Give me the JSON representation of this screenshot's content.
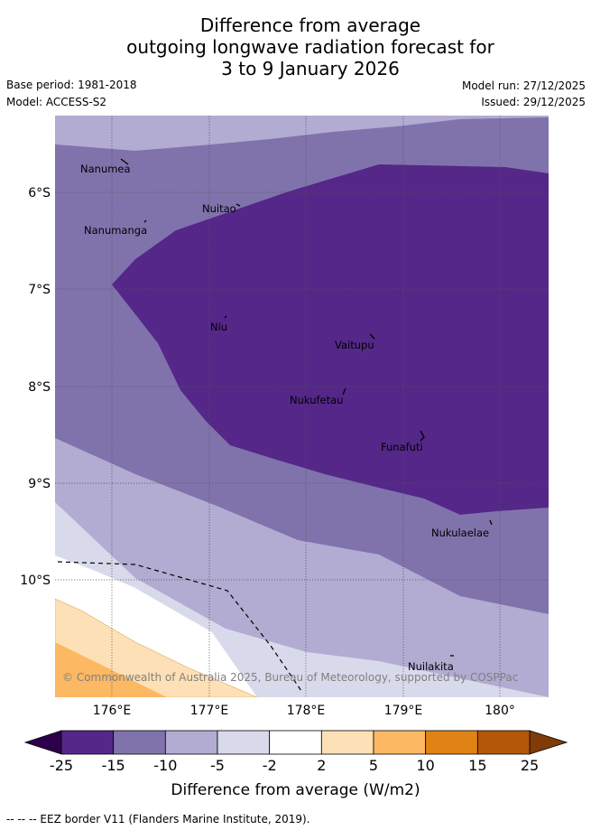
{
  "header": {
    "title_lines": [
      "Difference from average",
      "outgoing longwave radiation forecast for",
      "3 to 9 January 2026"
    ],
    "base_period": "Base period: 1981-2018",
    "model": "Model: ACCESS-S2",
    "model_run": "Model run: 27/12/2025",
    "issued": "Issued: 29/12/2025"
  },
  "map": {
    "lon_labels": [
      "176°E",
      "177°E",
      "178°E",
      "179°E",
      "180°"
    ],
    "lat_labels": [
      "6°S",
      "7°S",
      "8°S",
      "9°S",
      "10°S"
    ],
    "islands": [
      "Nanumea",
      "Nuitao",
      "Nanumanga",
      "Niu",
      "Vaitupu",
      "Nukufetau",
      "Funafuti",
      "Nukulaelae",
      "Nuilakita"
    ],
    "copyright": "© Commonwealth of Australia 2025, Bureau of Meteorology, supported by COSPPac",
    "colors": {
      "lt_-15": "#542788",
      "-15_-10": "#8073ac",
      "-10_-5": "#b2abd2",
      "-5_-2": "#d8daeb",
      "-2_2": "#ffffff",
      "2_5": "#fee0b6",
      "5_10": "#fdb863",
      "10_15": "#e08214",
      "15_25": "#b35806",
      "gt_25": "#7f3b08",
      "lt_-25": "#2d004b"
    }
  },
  "colorbar": {
    "ticks": [
      "-25",
      "-15",
      "-10",
      "-5",
      "-2",
      "2",
      "5",
      "10",
      "15",
      "25"
    ],
    "colors": [
      "#542788",
      "#8073ac",
      "#b2abd2",
      "#d8daeb",
      "#ffffff",
      "#fee0b6",
      "#fdb863",
      "#e08214",
      "#b35806"
    ],
    "under_color": "#2d004b",
    "over_color": "#7f3b08",
    "label": "Difference from average (W/m2)"
  },
  "footer": {
    "eez_legend": "-- -- -- EEZ border V11 (Flanders Marine Institute, 2019)."
  }
}
